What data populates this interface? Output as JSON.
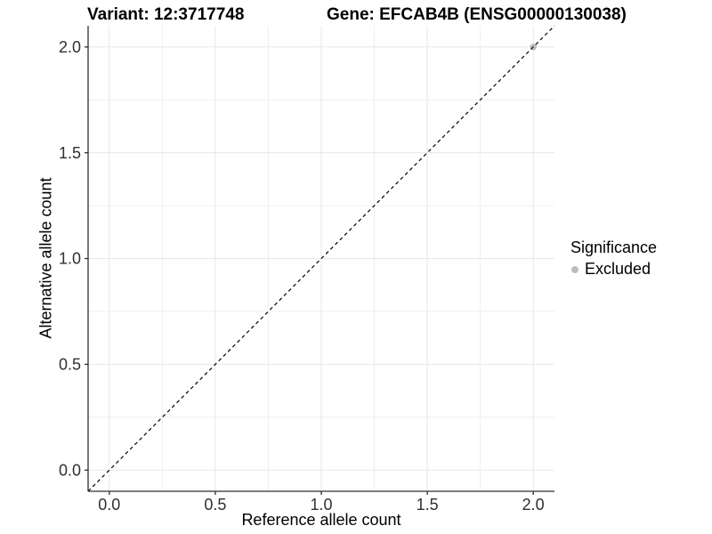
{
  "titles": {
    "variant": "Variant: 12:3717748",
    "gene": "Gene: EFCAB4B (ENSG00000130038)"
  },
  "axes": {
    "x": {
      "label": "Reference allele count"
    },
    "y": {
      "label": "Alternative allele count"
    }
  },
  "legend": {
    "title": "Significance",
    "items": [
      {
        "label": "Excluded",
        "color": "#bdbdbd"
      }
    ]
  },
  "colors": {
    "background": "#ffffff",
    "grid_major": "#e7e7e7",
    "grid_minor": "#efefef",
    "axis_line": "#2f2f2f",
    "tick_mark": "#2f2f2f",
    "tick_label": "#303030",
    "point": "#bdbdbd",
    "dashed_line": "#000000"
  },
  "chart_data": {
    "type": "scatter",
    "title": "Variant: 12:3717748 | Gene: EFCAB4B (ENSG00000130038)",
    "xlabel": "Reference allele count",
    "ylabel": "Alternative allele count",
    "xlim": [
      -0.1,
      2.1
    ],
    "ylim": [
      -0.1,
      2.1
    ],
    "x_ticks": [
      0.0,
      0.5,
      1.0,
      1.5,
      2.0
    ],
    "y_ticks": [
      0.0,
      0.5,
      1.0,
      1.5,
      2.0
    ],
    "x_tick_labels": [
      "0.0",
      "0.5",
      "1.0",
      "1.5",
      "2.0"
    ],
    "y_tick_labels": [
      "0.0",
      "0.5",
      "1.0",
      "1.5",
      "2.0"
    ],
    "x_minor_ticks": [
      0.25,
      0.75,
      1.25,
      1.75
    ],
    "y_minor_ticks": [
      0.25,
      0.75,
      1.25,
      1.75
    ],
    "grid": "major and minor, light gray on white",
    "legend_position": "right",
    "series": [
      {
        "name": "Excluded",
        "type": "points",
        "color": "#bdbdbd",
        "points": [
          [
            2.0,
            2.0
          ]
        ]
      },
      {
        "name": "identity_line",
        "type": "line",
        "linestyle": "dashed",
        "color": "#000000",
        "points": [
          [
            -0.1,
            -0.1
          ],
          [
            2.1,
            2.1
          ]
        ]
      }
    ]
  }
}
